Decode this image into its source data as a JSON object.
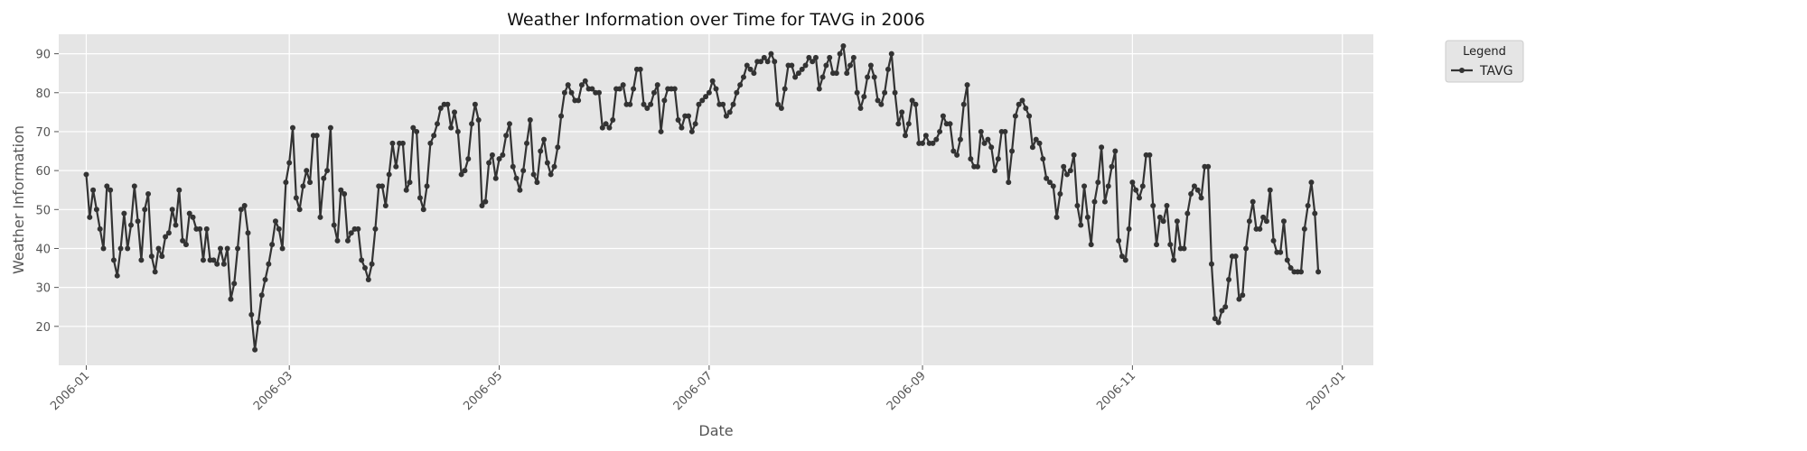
{
  "chart_data": {
    "type": "line",
    "title": "Weather Information over Time for TAVG in 2006",
    "xlabel": "Date",
    "ylabel": "Weather Information",
    "x_range": [
      "2005-12-24",
      "2007-01-10"
    ],
    "ylim": [
      10,
      95
    ],
    "x_ticks": [
      "2006-01",
      "2006-03",
      "2006-05",
      "2006-07",
      "2006-09",
      "2006-11",
      "2007-01"
    ],
    "y_ticks": [
      20,
      30,
      40,
      50,
      60,
      70,
      80,
      90
    ],
    "grid": true,
    "legend": {
      "title": "Legend",
      "placement": "outside-top-right"
    },
    "series": [
      {
        "name": "TAVG",
        "color": "#333333",
        "start_date": "2006-01-01",
        "step_days": 1,
        "values": [
          59,
          48,
          55,
          50,
          45,
          40,
          56,
          55,
          37,
          33,
          40,
          49,
          40,
          46,
          56,
          47,
          37,
          50,
          54,
          38,
          34,
          40,
          38,
          43,
          44,
          50,
          46,
          55,
          42,
          41,
          49,
          48,
          45,
          45,
          37,
          45,
          37,
          37,
          36,
          40,
          36,
          40,
          27,
          31,
          40,
          50,
          51,
          44,
          23,
          14,
          21,
          28,
          32,
          36,
          41,
          47,
          45,
          40,
          57,
          62,
          71,
          53,
          50,
          56,
          60,
          57,
          69,
          69,
          48,
          58,
          60,
          71,
          46,
          42,
          55,
          54,
          42,
          44,
          45,
          45,
          37,
          35,
          32,
          36,
          45,
          56,
          56,
          51,
          59,
          67,
          61,
          67,
          67,
          55,
          57,
          71,
          70,
          53,
          50,
          56,
          67,
          69,
          72,
          76,
          77,
          77,
          71,
          75,
          70,
          59,
          60,
          63,
          72,
          77,
          73,
          51,
          52,
          62,
          64,
          58,
          63,
          64,
          69,
          72,
          61,
          58,
          55,
          60,
          67,
          73,
          59,
          57,
          65,
          68,
          62,
          59,
          61,
          66,
          74,
          80,
          82,
          80,
          78,
          78,
          82,
          83,
          81,
          81,
          80,
          80,
          71,
          72,
          71,
          73,
          81,
          81,
          82,
          77,
          77,
          81,
          86,
          86,
          77,
          76,
          77,
          80,
          82,
          70,
          78,
          81,
          81,
          81,
          73,
          71,
          74,
          74,
          70,
          72,
          77,
          78,
          79,
          80,
          83,
          81,
          77,
          77,
          74,
          75,
          77,
          80,
          82,
          84,
          87,
          86,
          85,
          88,
          88,
          89,
          88,
          90,
          88,
          77,
          76,
          81,
          87,
          87,
          84,
          85,
          86,
          87,
          89,
          88,
          89,
          81,
          84,
          87,
          89,
          85,
          85,
          90,
          92,
          85,
          87,
          89,
          80,
          76,
          79,
          84,
          87,
          84,
          78,
          77,
          80,
          86,
          90,
          80,
          72,
          75,
          69,
          72,
          78,
          77,
          67,
          67,
          69,
          67,
          67,
          68,
          70,
          74,
          72,
          72,
          65,
          64,
          68,
          77,
          82,
          63,
          61,
          61,
          70,
          67,
          68,
          66,
          60,
          63,
          70,
          70,
          57,
          65,
          74,
          77,
          78,
          76,
          74,
          66,
          68,
          67,
          63,
          58,
          57,
          56,
          48,
          54,
          61,
          59,
          60,
          64,
          51,
          46,
          56,
          48,
          41,
          52,
          57,
          66,
          52,
          56,
          61,
          65,
          42,
          38,
          37,
          45,
          57,
          55,
          53,
          56,
          64,
          64,
          51,
          41,
          48,
          47,
          51,
          41,
          37,
          47,
          40,
          40,
          49,
          54,
          56,
          55,
          53,
          61,
          61,
          36,
          22,
          21,
          24,
          25,
          32,
          38,
          38,
          27,
          28,
          40,
          47,
          52,
          45,
          45,
          48,
          47,
          55,
          42,
          39,
          39,
          47,
          37,
          35,
          34,
          34,
          34,
          45,
          51,
          57,
          49,
          34
        ]
      }
    ]
  }
}
